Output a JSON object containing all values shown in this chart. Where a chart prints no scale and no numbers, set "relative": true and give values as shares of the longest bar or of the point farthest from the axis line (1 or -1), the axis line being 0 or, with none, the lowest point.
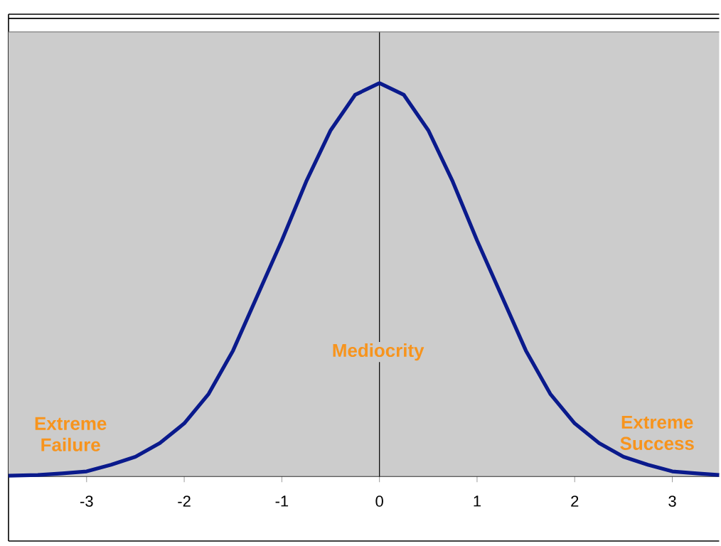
{
  "chart_data": {
    "type": "line",
    "relative": true,
    "xlim": [
      -3.8,
      3.48
    ],
    "xticks": [
      -3,
      -2,
      -1,
      0,
      1,
      2,
      3
    ],
    "marker": "none",
    "line_style": "solid",
    "x": [
      -3.8,
      -3.5,
      -3.25,
      -3,
      -2.75,
      -2.5,
      -2.25,
      -2,
      -1.75,
      -1.5,
      -1.25,
      -1,
      -0.75,
      -0.5,
      -0.25,
      0,
      0.25,
      0.5,
      0.75,
      1,
      1.25,
      1.5,
      1.75,
      2,
      2.25,
      2.5,
      2.75,
      3,
      3.25,
      3.48
    ],
    "series": [
      {
        "color": "#0a1a8c",
        "values": [
          0.002,
          0.004,
          0.008,
          0.013,
          0.03,
          0.05,
          0.085,
          0.135,
          0.21,
          0.32,
          0.46,
          0.6,
          0.75,
          0.88,
          0.97,
          1,
          0.97,
          0.88,
          0.75,
          0.6,
          0.46,
          0.32,
          0.21,
          0.135,
          0.085,
          0.05,
          0.03,
          0.013,
          0.008,
          0.004
        ]
      }
    ],
    "annotations": [
      "Extreme Failure",
      "Mediocrity",
      "Extreme Success"
    ]
  }
}
